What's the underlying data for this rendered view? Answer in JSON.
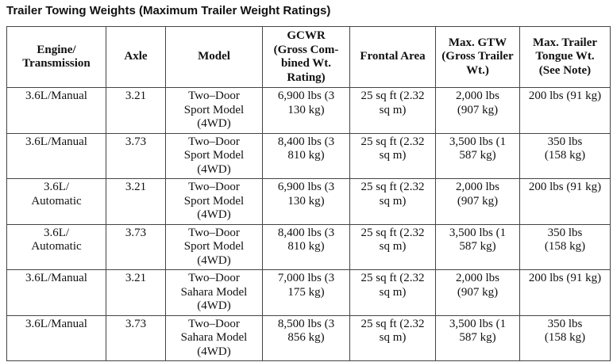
{
  "title": "Trailer Towing Weights (Maximum Trailer Weight Ratings)",
  "table": {
    "header": [
      [
        "Engine/",
        "Transmission"
      ],
      [
        "Axle"
      ],
      [
        "Model"
      ],
      [
        "GCWR",
        "(Gross Com-",
        "bined Wt.",
        "Rating)"
      ],
      [
        "Frontal Area"
      ],
      [
        "Max. GTW",
        "(Gross Trailer",
        "Wt.)"
      ],
      [
        "Max. Trailer",
        "Tongue Wt.",
        "(See Note)"
      ]
    ],
    "rows": [
      [
        [
          "3.6L/Manual"
        ],
        [
          "3.21"
        ],
        [
          "Two–Door",
          "Sport Model",
          "(4WD)"
        ],
        [
          "6,900 lbs (3",
          "130 kg)"
        ],
        [
          "25 sq ft (2.32",
          "sq m)"
        ],
        [
          "2,000 lbs",
          "(907 kg)"
        ],
        [
          "200 lbs (91 kg)"
        ]
      ],
      [
        [
          "3.6L/Manual"
        ],
        [
          "3.73"
        ],
        [
          "Two–Door",
          "Sport Model",
          "(4WD)"
        ],
        [
          "8,400 lbs (3",
          "810 kg)"
        ],
        [
          "25 sq ft (2.32",
          "sq m)"
        ],
        [
          "3,500 lbs (1",
          "587 kg)"
        ],
        [
          "350 lbs",
          "(158 kg)"
        ]
      ],
      [
        [
          "3.6L/",
          "Automatic"
        ],
        [
          "3.21"
        ],
        [
          "Two–Door",
          "Sport Model",
          "(4WD)"
        ],
        [
          "6,900 lbs (3",
          "130 kg)"
        ],
        [
          "25 sq ft (2.32",
          "sq m)"
        ],
        [
          "2,000 lbs",
          "(907 kg)"
        ],
        [
          "200 lbs (91 kg)"
        ]
      ],
      [
        [
          "3.6L/",
          "Automatic"
        ],
        [
          "3.73"
        ],
        [
          "Two–Door",
          "Sport Model",
          "(4WD)"
        ],
        [
          "8,400 lbs (3",
          "810 kg)"
        ],
        [
          "25 sq ft (2.32",
          "sq m)"
        ],
        [
          "3,500 lbs (1",
          "587 kg)"
        ],
        [
          "350 lbs",
          "(158 kg)"
        ]
      ],
      [
        [
          "3.6L/Manual"
        ],
        [
          "3.21"
        ],
        [
          "Two–Door",
          "Sahara Model",
          "(4WD)"
        ],
        [
          "7,000 lbs (3",
          "175 kg)"
        ],
        [
          "25 sq ft (2.32",
          "sq m)"
        ],
        [
          "2,000 lbs",
          "(907 kg)"
        ],
        [
          "200 lbs (91 kg)"
        ]
      ],
      [
        [
          "3.6L/Manual"
        ],
        [
          "3.73"
        ],
        [
          "Two–Door",
          "Sahara Model",
          "(4WD)"
        ],
        [
          "8,500 lbs (3",
          "856 kg)"
        ],
        [
          "25 sq ft (2.32",
          "sq m)"
        ],
        [
          "3,500 lbs (1",
          "587 kg)"
        ],
        [
          "350 lbs",
          "(158 kg)"
        ]
      ]
    ]
  }
}
